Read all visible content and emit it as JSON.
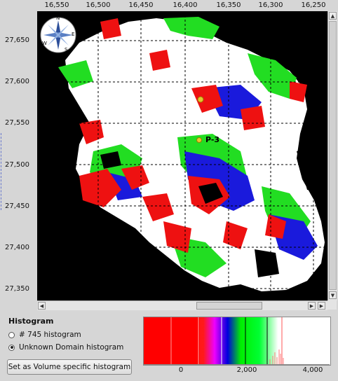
{
  "map_view": {
    "x_ticks": [
      "16,550",
      "16,500",
      "16,450",
      "16,400",
      "16,350",
      "16,300",
      "16,250"
    ],
    "y_ticks": [
      "27,650",
      "27,600",
      "27,550",
      "27,500",
      "27,450",
      "27,400",
      "27,350"
    ],
    "marker_label": "P-3",
    "compass": {
      "n": "N",
      "e": "E",
      "s": "S",
      "w": "W"
    },
    "colors": {
      "background": "#000000",
      "red": "#ee1111",
      "blue": "#1a1adc",
      "green": "#22dd22",
      "white": "#ffffff"
    }
  },
  "histogram_panel": {
    "title": "Histogram",
    "options": [
      {
        "label": "# 745 histogram",
        "selected": false
      },
      {
        "label": "Unknown Domain histogram",
        "selected": true
      }
    ],
    "set_button": "Set as Volume specific histogram",
    "ticks": [
      "0",
      "2,000",
      "4,000"
    ]
  }
}
